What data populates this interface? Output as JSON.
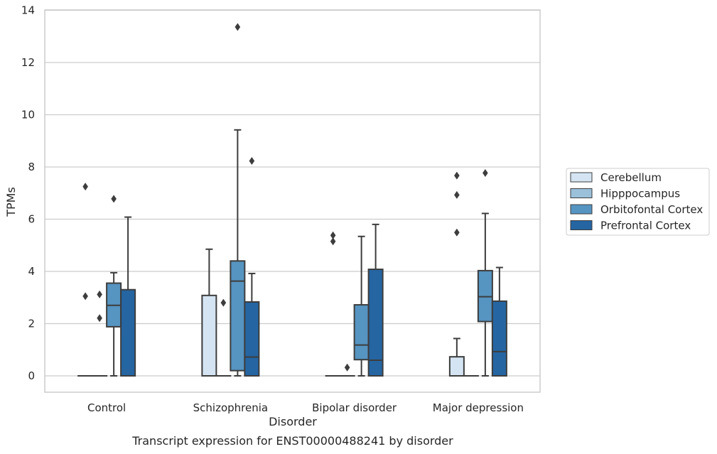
{
  "chart_data": {
    "type": "boxplot",
    "title": "Transcript expression for ENST00000488241 by disorder",
    "xlabel": "Disorder",
    "ylabel": "TPMs",
    "categories": [
      "Control",
      "Schizophrenia",
      "Bipolar disorder",
      "Major depression"
    ],
    "ylim": [
      -0.6,
      14.05
    ],
    "yticks": [
      0,
      2,
      4,
      6,
      8,
      10,
      12,
      14
    ],
    "grid": "horizontal",
    "legend_position": "right",
    "series": [
      {
        "name": "Cerebellum",
        "color": "#d4e4f2",
        "boxes": [
          {
            "min": 0,
            "q1": 0,
            "median": 0,
            "q3": 0,
            "max": 0,
            "outliers": [
              7.25,
              3.05
            ]
          },
          {
            "min": 0,
            "q1": 0,
            "median": 0,
            "q3": 3.08,
            "max": 4.85,
            "outliers": []
          },
          {
            "min": 0,
            "q1": 0,
            "median": 0,
            "q3": 0,
            "max": 0,
            "outliers": [
              5.38,
              5.15
            ]
          },
          {
            "min": 0,
            "q1": 0,
            "median": 0,
            "q3": 0.73,
            "max": 1.43,
            "outliers": [
              7.67,
              6.93,
              5.49
            ]
          }
        ]
      },
      {
        "name": "Hipppocampus",
        "color": "#9ac0da",
        "boxes": [
          {
            "min": 0,
            "q1": 0,
            "median": 0,
            "q3": 0,
            "max": 0,
            "outliers": [
              3.12,
              2.21
            ]
          },
          {
            "min": 0,
            "q1": 0,
            "median": 0,
            "q3": 0,
            "max": 0,
            "outliers": [
              2.8
            ]
          },
          {
            "min": 0,
            "q1": 0,
            "median": 0,
            "q3": 0,
            "max": 0,
            "outliers": [
              0.32
            ]
          },
          {
            "min": 0,
            "q1": 0,
            "median": 0,
            "q3": 0,
            "max": 0,
            "outliers": []
          }
        ]
      },
      {
        "name": "Orbitofontal Cortex",
        "color": "#5694c1",
        "boxes": [
          {
            "min": 0,
            "q1": 1.88,
            "median": 2.7,
            "q3": 3.55,
            "max": 3.95,
            "outliers": [
              6.78
            ]
          },
          {
            "min": 0,
            "q1": 0.2,
            "median": 3.63,
            "q3": 4.4,
            "max": 9.42,
            "outliers": [
              13.36
            ]
          },
          {
            "min": 0,
            "q1": 0.62,
            "median": 1.18,
            "q3": 2.72,
            "max": 5.34,
            "outliers": []
          },
          {
            "min": 0,
            "q1": 2.08,
            "median": 3.03,
            "q3": 4.03,
            "max": 6.22,
            "outliers": [
              7.77
            ]
          }
        ]
      },
      {
        "name": "Prefrontal Cortex",
        "color": "#2565a2",
        "boxes": [
          {
            "min": 0,
            "q1": 0,
            "median": 0,
            "q3": 3.3,
            "max": 6.08,
            "outliers": []
          },
          {
            "min": 0,
            "q1": 0,
            "median": 0.72,
            "q3": 2.83,
            "max": 3.92,
            "outliers": [
              8.23
            ]
          },
          {
            "min": 0,
            "q1": 0,
            "median": 0.6,
            "q3": 4.08,
            "max": 5.8,
            "outliers": []
          },
          {
            "min": 0,
            "q1": 0,
            "median": 0.93,
            "q3": 2.86,
            "max": 4.15,
            "outliers": []
          }
        ]
      }
    ]
  }
}
